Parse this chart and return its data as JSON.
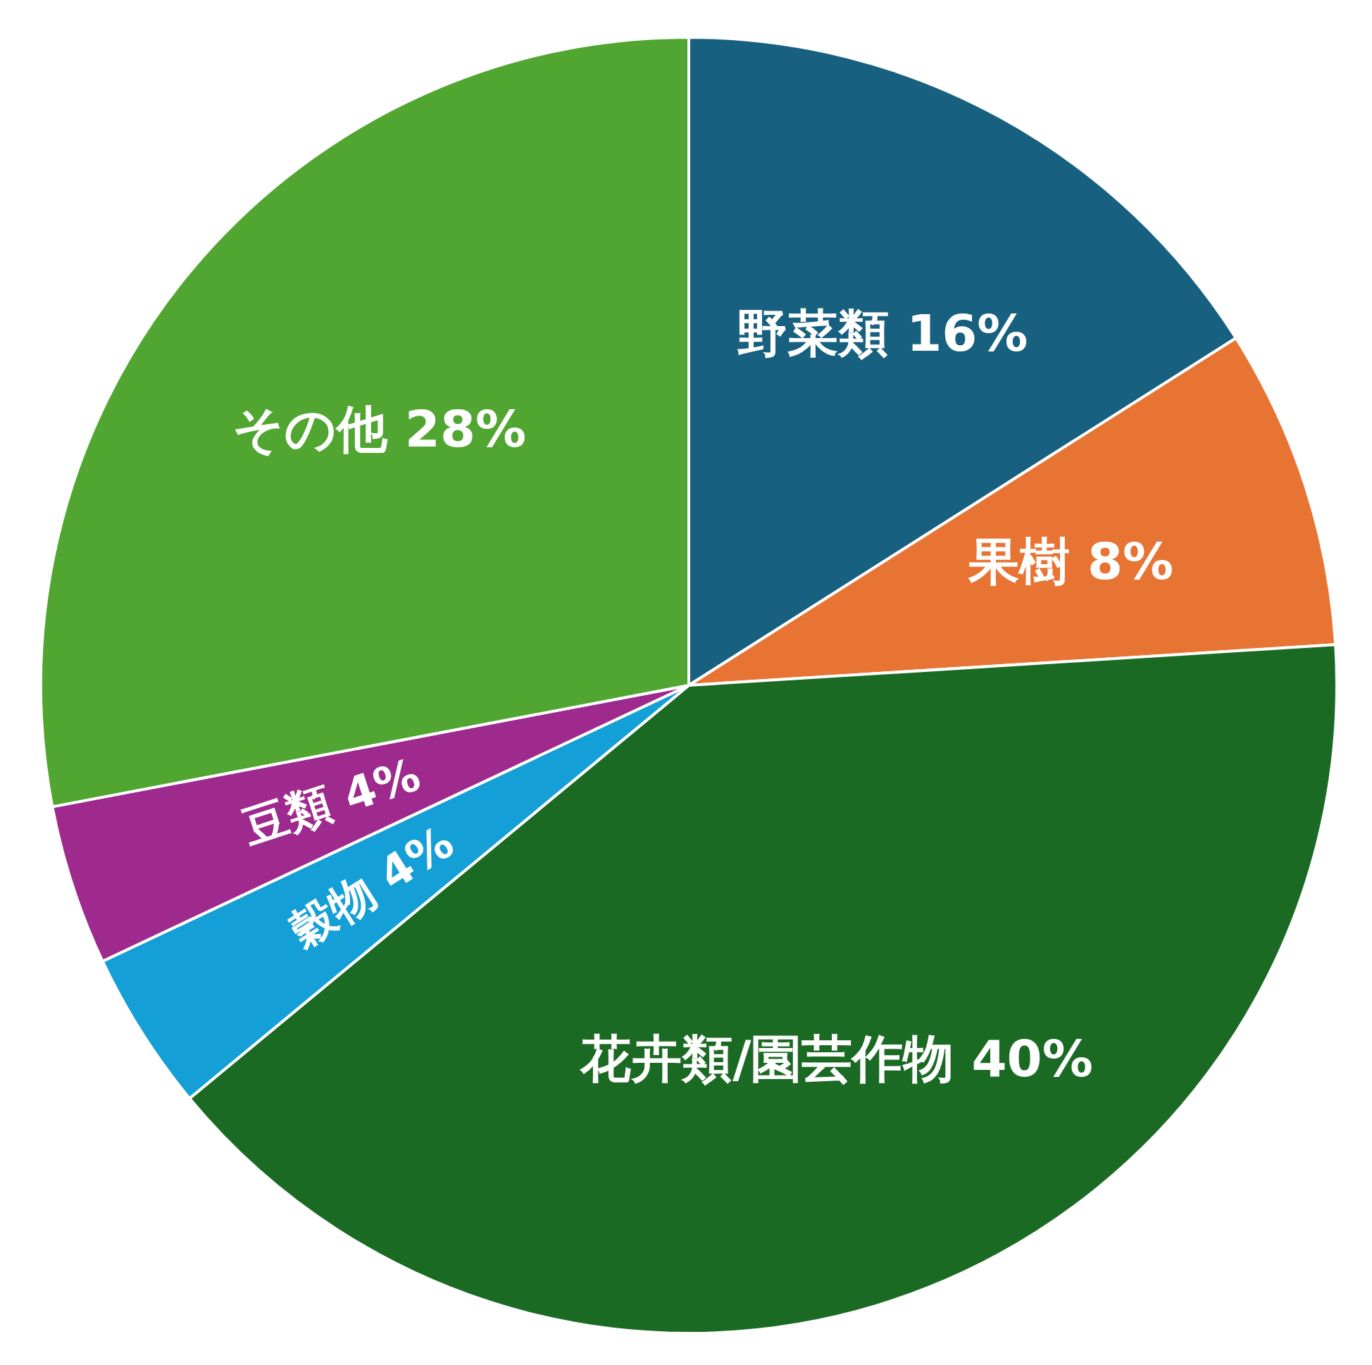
{
  "chart_data": {
    "type": "pie",
    "categories": [
      "野菜類",
      "果樹",
      "花卉類/園芸作物",
      "穀物",
      "豆類",
      "その他"
    ],
    "values": [
      16,
      8,
      40,
      4,
      4,
      28
    ],
    "value_labels": [
      "16%",
      "8%",
      "40%",
      "4%",
      "4%",
      "28%"
    ],
    "colors": [
      "#17607f",
      "#e87433",
      "#1b6a24",
      "#149fd7",
      "#9e2a8e",
      "#50a630"
    ],
    "legend": false
  }
}
